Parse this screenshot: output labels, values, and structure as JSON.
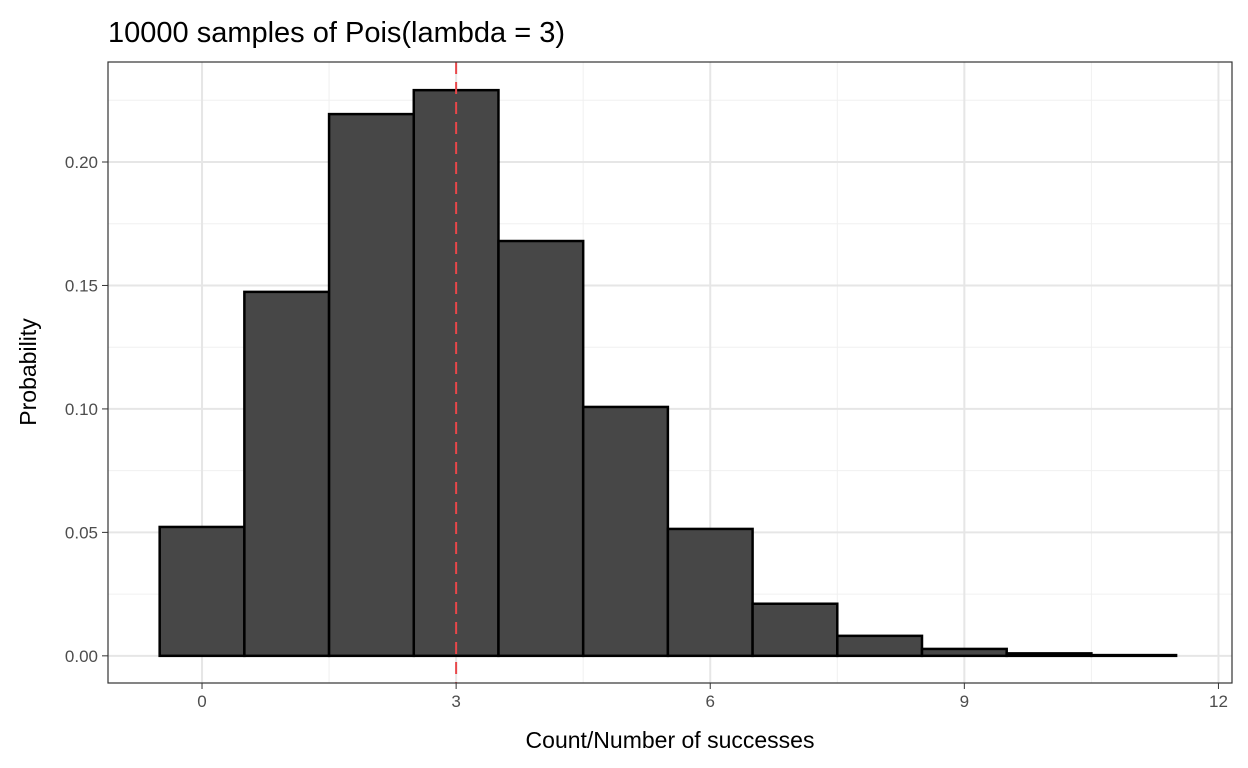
{
  "chart_data": {
    "type": "bar",
    "title": "10000 samples of Pois(lambda = 3)",
    "xlabel": "Count/Number of successes",
    "ylabel": "Probability",
    "x": [
      0,
      1,
      2,
      3,
      4,
      5,
      6,
      7,
      8,
      9,
      10,
      11
    ],
    "values": [
      0.0522,
      0.1474,
      0.2194,
      0.2291,
      0.168,
      0.1008,
      0.0514,
      0.0211,
      0.0081,
      0.0028,
      0.001,
      0.0003
    ],
    "xlim": [
      -1.11,
      12.16
    ],
    "ylim": [
      -0.011,
      0.2405
    ],
    "x_ticks": [
      "0",
      "3",
      "6",
      "9",
      "12"
    ],
    "y_ticks": [
      "0.00",
      "0.05",
      "0.10",
      "0.15",
      "0.20"
    ],
    "vline": {
      "x": 3,
      "style": "dashed",
      "color": "#e8474a"
    },
    "bar_fill": "#474747",
    "bar_edge": "#000000",
    "grid": true
  }
}
